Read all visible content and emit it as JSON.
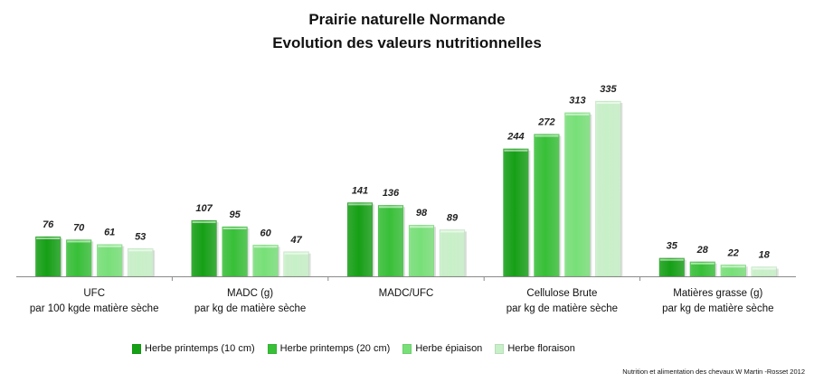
{
  "chart_data": {
    "type": "bar",
    "title": "Prairie naturelle Normande",
    "subtitle": "Evolution  des valeurs nutritionnelles",
    "categories": [
      [
        "UFC",
        "par 100 kgde matière sèche"
      ],
      [
        "MADC (g)",
        "par kg  de matière sèche"
      ],
      [
        "MADC/UFC",
        ""
      ],
      [
        "Cellulose Brute",
        "par kg de matière sèche"
      ],
      [
        "Matières grasse (g)",
        "par kg de matière sèche"
      ]
    ],
    "series": [
      {
        "name": "Herbe printemps (10 cm)",
        "color": "#16a016",
        "values": [
          76,
          107,
          141,
          244,
          35
        ]
      },
      {
        "name": "Herbe printemps (20 cm)",
        "color": "#38c038",
        "values": [
          70,
          95,
          136,
          272,
          28
        ]
      },
      {
        "name": "Herbe épiaison",
        "color": "#78e078",
        "values": [
          61,
          60,
          98,
          313,
          22
        ]
      },
      {
        "name": "Herbe floraison",
        "color": "#c8f0c8",
        "values": [
          53,
          47,
          89,
          335,
          18
        ]
      }
    ],
    "ylim": [
      0,
      335
    ],
    "grid": false,
    "legend_position": "bottom"
  },
  "source": "Nutrition et alimentation  des chevaux   W Martin -Rosset 2012"
}
